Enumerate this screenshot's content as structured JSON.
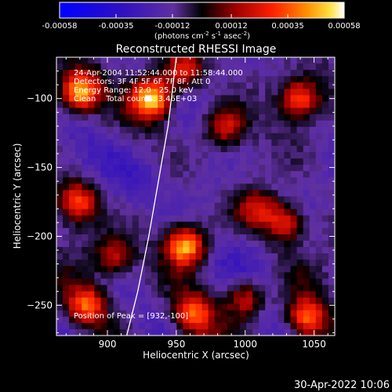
{
  "chart_data": {
    "type": "heatmap",
    "title": "Reconstructed RHESSI Image",
    "xlabel": "Heliocentric X (arcsec)",
    "ylabel": "Heliocentric Y (arcsec)",
    "xlim": [
      863,
      1065
    ],
    "ylim": [
      -272,
      -70
    ],
    "x_ticks": [
      900,
      950,
      1000,
      1050
    ],
    "y_ticks": [
      -250,
      -200,
      -150,
      -100
    ],
    "colorbar": {
      "min": -0.00058,
      "max": 0.00058,
      "tick_values": [
        -0.00058,
        -0.00035,
        -0.00012,
        0.00012,
        0.00035,
        0.00058
      ],
      "tick_labels": [
        "-0.00058",
        "-0.00035",
        "-0.00012",
        "0.00012",
        "0.00035",
        "0.00058"
      ],
      "unit_text": "(photons cm",
      "unit_sup1": "-2",
      "unit_mid": " s",
      "unit_sup2": "-1",
      "unit_mid2": " asec",
      "unit_sup3": "-2",
      "unit_end": ")"
    },
    "annotations": [
      "24-Apr-2004 11:52:44.000 to 11:58:44.000",
      "Detectors: 3F 4F 5F 6F 7F 8F, Att 0",
      "Energy Range: 12.0 - 25.0 keV",
      "Clean    Total counts: 3.46E+03"
    ],
    "peak_label": "Position of Peak = [932,-100]",
    "peak": [
      932,
      -100
    ],
    "limb_curve": [
      [
        914,
        -272
      ],
      [
        922,
        -240
      ],
      [
        930,
        -200
      ],
      [
        937,
        -160
      ],
      [
        944,
        -120
      ],
      [
        950,
        -70
      ]
    ],
    "bright_regions": [
      {
        "x": 880,
        "y": -95,
        "intensity": 0.95
      },
      {
        "x": 932,
        "y": -100,
        "intensity": 1.0
      },
      {
        "x": 957,
        "y": -207,
        "intensity": 0.95
      },
      {
        "x": 878,
        "y": -175,
        "intensity": 0.7
      },
      {
        "x": 885,
        "y": -250,
        "intensity": 0.72
      },
      {
        "x": 962,
        "y": -257,
        "intensity": 0.7
      },
      {
        "x": 1040,
        "y": -100,
        "intensity": 0.7
      },
      {
        "x": 1045,
        "y": -260,
        "intensity": 0.72
      },
      {
        "x": 1030,
        "y": -190,
        "intensity": 0.6
      },
      {
        "x": 985,
        "y": -120,
        "intensity": 0.55
      },
      {
        "x": 1000,
        "y": -245,
        "intensity": 0.6
      },
      {
        "x": 955,
        "y": -80,
        "intensity": 0.55
      },
      {
        "x": 1010,
        "y": -180,
        "intensity": 0.5
      },
      {
        "x": 905,
        "y": -215,
        "intensity": 0.5
      }
    ],
    "dark_regions": [
      {
        "x": 920,
        "y": -160,
        "intensity": 0.9
      },
      {
        "x": 975,
        "y": -160,
        "intensity": 0.8
      },
      {
        "x": 1000,
        "y": -210,
        "intensity": 0.6
      },
      {
        "x": 900,
        "y": -140,
        "intensity": 0.7
      },
      {
        "x": 1020,
        "y": -230,
        "intensity": 0.5
      }
    ]
  },
  "footer_date": "30-Apr-2022 10:06"
}
